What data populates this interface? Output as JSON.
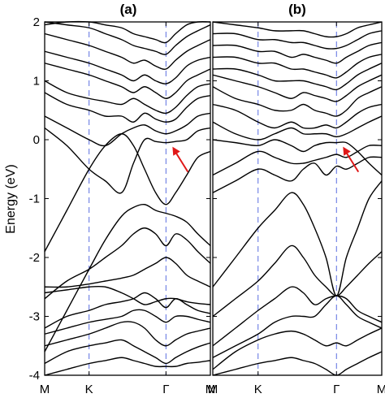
{
  "chart_data": [
    {
      "type": "line",
      "title": "(a)",
      "ylabel": "Energy (eV)",
      "ylim": [
        -4,
        2
      ],
      "yticks": [
        "2",
        "1",
        "0",
        "-1",
        "-2",
        "-3",
        "-4"
      ],
      "xticks": [
        "M",
        "K",
        "Γ",
        "M"
      ],
      "kpath_positions": [
        0,
        1,
        2.732,
        3.732
      ],
      "grid": false,
      "vertical_markers_at": [
        "K",
        "Γ"
      ],
      "arrow_target": {
        "k": 2.732,
        "energy": -0.05
      },
      "x": [
        0,
        0.5,
        1,
        1.366,
        1.732,
        2.0,
        2.25,
        2.5,
        2.732,
        2.95,
        3.2,
        3.45,
        3.732
      ],
      "series": [
        {
          "values": [
            -4.0,
            -3.9,
            -3.8,
            -3.75,
            -3.7,
            -3.75,
            -3.8,
            -3.85,
            -3.85,
            -3.85,
            -3.8,
            -3.78,
            -3.75
          ]
        },
        {
          "values": [
            -3.8,
            -3.6,
            -3.5,
            -3.45,
            -3.4,
            -3.5,
            -3.6,
            -3.7,
            -3.8,
            -3.7,
            -3.6,
            -3.52,
            -3.45
          ]
        },
        {
          "values": [
            -3.5,
            -3.4,
            -3.3,
            -3.2,
            -3.1,
            -3.1,
            -3.2,
            -3.4,
            -3.5,
            -3.4,
            -3.3,
            -3.25,
            -3.2
          ]
        },
        {
          "values": [
            -3.3,
            -3.2,
            -3.1,
            -3.05,
            -3.0,
            -2.9,
            -2.9,
            -3.0,
            -3.1,
            -3.0,
            -3.0,
            -3.05,
            -3.1
          ]
        },
        {
          "values": [
            -3.2,
            -3.0,
            -2.9,
            -2.8,
            -2.75,
            -2.7,
            -2.6,
            -2.7,
            -2.85,
            -2.7,
            -2.8,
            -2.9,
            -2.95
          ]
        },
        {
          "values": [
            -2.6,
            -2.55,
            -2.5,
            -2.5,
            -2.6,
            -2.7,
            -2.8,
            -2.75,
            -2.7,
            -2.7,
            -2.75,
            -2.78,
            -2.8
          ]
        },
        {
          "values": [
            -2.5,
            -2.5,
            -2.45,
            -2.4,
            -2.35,
            -2.3,
            -2.2,
            -2.1,
            -2.0,
            -2.1,
            -2.3,
            -2.4,
            -2.5
          ]
        },
        {
          "values": [
            -2.7,
            -2.4,
            -2.2,
            -2.0,
            -1.8,
            -1.6,
            -1.5,
            -1.6,
            -1.8,
            -1.6,
            -1.7,
            -1.9,
            -2.1
          ]
        },
        {
          "values": [
            -3.6,
            -2.9,
            -2.2,
            -1.7,
            -1.3,
            -1.15,
            -1.1,
            -1.2,
            -1.25,
            -1.3,
            -1.4,
            -1.6,
            -1.8
          ]
        },
        {
          "values": [
            -1.9,
            -1.2,
            -0.5,
            -0.1,
            0.1,
            -0.1,
            -0.5,
            -0.9,
            -1.1,
            -0.9,
            -0.6,
            -0.3,
            -0.2
          ]
        },
        {
          "values": [
            0.2,
            -0.1,
            -0.5,
            -0.7,
            -0.9,
            -0.4,
            0.0,
            -0.03,
            -0.05,
            -0.03,
            0.0,
            0.15,
            0.2
          ]
        },
        {
          "values": [
            0.4,
            0.2,
            0.0,
            -0.1,
            0.1,
            0.2,
            0.25,
            0.15,
            0.1,
            0.15,
            0.25,
            0.4,
            0.45
          ]
        },
        {
          "values": [
            0.8,
            0.6,
            0.5,
            0.4,
            0.4,
            0.3,
            0.45,
            0.35,
            0.3,
            0.35,
            0.55,
            0.7,
            0.75
          ]
        },
        {
          "values": [
            1.0,
            0.8,
            0.7,
            0.65,
            0.6,
            0.7,
            0.6,
            0.5,
            0.45,
            0.55,
            0.75,
            0.9,
            0.95
          ]
        },
        {
          "values": [
            1.3,
            1.2,
            1.1,
            1.0,
            0.9,
            0.8,
            0.9,
            0.8,
            0.7,
            0.8,
            1.0,
            1.1,
            1.2
          ]
        },
        {
          "values": [
            1.5,
            1.4,
            1.3,
            1.2,
            1.1,
            1.0,
            1.1,
            1.0,
            0.95,
            1.05,
            1.25,
            1.35,
            1.4
          ]
        },
        {
          "values": [
            1.8,
            1.7,
            1.6,
            1.5,
            1.4,
            1.3,
            1.35,
            1.25,
            1.2,
            1.35,
            1.5,
            1.6,
            1.7
          ]
        },
        {
          "values": [
            2.0,
            1.95,
            1.9,
            1.8,
            1.7,
            1.6,
            1.55,
            1.5,
            1.45,
            1.6,
            1.75,
            1.85,
            1.95
          ]
        },
        {
          "values": [
            1.95,
            2.0,
            2.0,
            1.95,
            1.9,
            1.8,
            1.75,
            1.7,
            1.65,
            1.8,
            1.95,
            2.0,
            2.0
          ]
        }
      ]
    },
    {
      "type": "line",
      "title": "(b)",
      "ylim": [
        -4,
        2
      ],
      "xticks": [
        "M",
        "K",
        "Γ",
        "M"
      ],
      "kpath_positions": [
        0,
        1,
        2.732,
        3.732
      ],
      "grid": false,
      "vertical_markers_at": [
        "K",
        "Γ"
      ],
      "arrow_target": {
        "k": 2.732,
        "energy": -0.05
      },
      "x": [
        0,
        0.5,
        1,
        1.366,
        1.732,
        2.0,
        2.25,
        2.5,
        2.732,
        2.95,
        3.2,
        3.45,
        3.732
      ],
      "series": [
        {
          "values": [
            -4.0,
            -3.9,
            -3.8,
            -3.75,
            -3.7,
            -3.75,
            -3.8,
            -3.9,
            -4.0,
            -3.9,
            -3.8,
            -3.7,
            -3.6
          ]
        },
        {
          "values": [
            -3.9,
            -3.6,
            -3.4,
            -3.3,
            -3.25,
            -3.3,
            -3.4,
            -3.5,
            -3.45,
            -3.5,
            -3.4,
            -3.3,
            -3.2
          ]
        },
        {
          "values": [
            -3.7,
            -3.5,
            -3.3,
            -3.1,
            -3.0,
            -3.0,
            -3.0,
            -2.8,
            -2.65,
            -2.8,
            -3.0,
            -3.1,
            -3.2
          ]
        },
        {
          "values": [
            -3.5,
            -3.2,
            -2.9,
            -2.7,
            -2.5,
            -2.6,
            -2.8,
            -2.7,
            -2.65,
            -2.7,
            -2.9,
            -3.0,
            -3.1
          ]
        },
        {
          "values": [
            -3.0,
            -2.7,
            -2.4,
            -2.1,
            -1.8,
            -2.0,
            -2.3,
            -2.5,
            -2.65,
            -2.5,
            -2.3,
            -2.1,
            -1.9
          ]
        },
        {
          "values": [
            -2.5,
            -2.0,
            -1.5,
            -1.2,
            -0.9,
            -1.1,
            -1.5,
            -2.0,
            -2.65,
            -2.0,
            -1.5,
            -1.0,
            -0.7
          ]
        },
        {
          "values": [
            -0.9,
            -0.7,
            -0.5,
            -0.6,
            -0.7,
            -0.5,
            -0.4,
            -0.6,
            -0.45,
            -0.5,
            -0.4,
            -0.3,
            -0.3
          ]
        },
        {
          "values": [
            -0.6,
            -0.4,
            -0.2,
            -0.3,
            -0.4,
            -0.4,
            -0.35,
            -0.3,
            -0.25,
            -0.3,
            -0.2,
            -0.1,
            -0.1
          ]
        },
        {
          "values": [
            0.0,
            -0.05,
            -0.1,
            0.0,
            -0.1,
            -0.2,
            -0.1,
            -0.05,
            -0.05,
            -0.05,
            -0.2,
            -0.4,
            -0.6
          ]
        },
        {
          "values": [
            0.3,
            0.1,
            0.0,
            0.1,
            0.2,
            0.1,
            0.1,
            0.1,
            0.05,
            0.1,
            0.2,
            0.3,
            0.4
          ]
        },
        {
          "values": [
            0.6,
            0.5,
            0.3,
            0.2,
            0.3,
            0.2,
            0.2,
            0.25,
            0.2,
            0.3,
            0.45,
            0.55,
            0.6
          ]
        },
        {
          "values": [
            0.9,
            0.7,
            0.6,
            0.5,
            0.5,
            0.6,
            0.5,
            0.45,
            0.4,
            0.5,
            0.7,
            0.8,
            0.9
          ]
        },
        {
          "values": [
            1.1,
            1.0,
            0.9,
            0.8,
            0.7,
            0.8,
            0.75,
            0.7,
            0.65,
            0.75,
            0.9,
            1.0,
            1.1
          ]
        },
        {
          "values": [
            1.2,
            1.2,
            1.1,
            1.0,
            1.0,
            1.0,
            0.95,
            0.9,
            0.85,
            0.95,
            1.1,
            1.2,
            1.3
          ]
        },
        {
          "values": [
            1.4,
            1.4,
            1.3,
            1.3,
            1.2,
            1.2,
            1.15,
            1.1,
            1.05,
            1.15,
            1.3,
            1.4,
            1.45
          ]
        },
        {
          "values": [
            1.6,
            1.6,
            1.5,
            1.5,
            1.4,
            1.45,
            1.4,
            1.35,
            1.3,
            1.4,
            1.5,
            1.6,
            1.65
          ]
        },
        {
          "values": [
            1.8,
            1.8,
            1.7,
            1.7,
            1.65,
            1.65,
            1.6,
            1.55,
            1.55,
            1.6,
            1.7,
            1.8,
            1.85
          ]
        },
        {
          "values": [
            2.0,
            1.95,
            1.9,
            1.85,
            1.85,
            1.85,
            1.8,
            1.75,
            1.75,
            1.8,
            1.9,
            1.95,
            2.0
          ]
        }
      ]
    }
  ]
}
